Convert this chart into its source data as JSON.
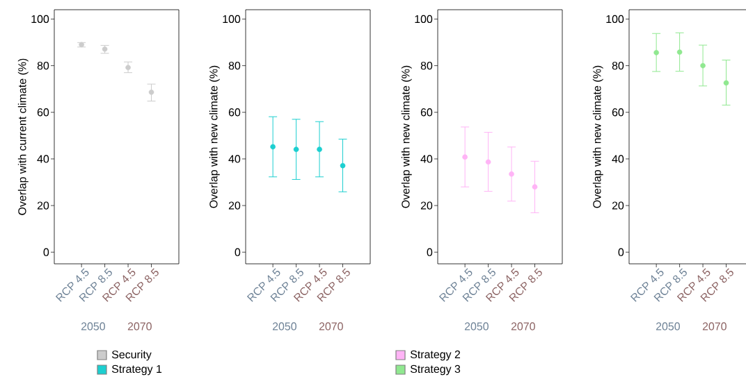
{
  "chart_data": [
    {
      "type": "scatter",
      "categories": [
        "RCP 4.5",
        "RCP 8.5",
        "RCP 4.5",
        "RCP 8.5"
      ],
      "ylabel": "Overlap with current climate (%)",
      "ylim": [
        -5,
        104
      ],
      "yticks": [
        0,
        20,
        40,
        60,
        80,
        100
      ],
      "marker": "circle",
      "legend": "bottom",
      "annotations": [
        "2050",
        "2070"
      ],
      "series": [
        {
          "name": "Security",
          "color": "#cccccc",
          "values": [
            89.0,
            87.1,
            79.2,
            68.6
          ],
          "errors": [
            [
              88.0,
              89.9
            ],
            [
              85.3,
              88.7
            ],
            [
              77.0,
              81.6
            ],
            [
              64.8,
              72.1
            ]
          ]
        }
      ]
    },
    {
      "type": "scatter",
      "categories": [
        "RCP 4.5",
        "RCP 8.5",
        "RCP 4.5",
        "RCP 8.5"
      ],
      "ylabel": "Overlap with new climate (%)",
      "ylim": [
        -5,
        104
      ],
      "yticks": [
        0,
        20,
        40,
        60,
        80,
        100
      ],
      "marker": "circle",
      "legend": "bottom",
      "annotations": [
        "2050",
        "2070"
      ],
      "series": [
        {
          "name": "Strategy 1",
          "color": "#1ccfd0",
          "values": [
            45.2,
            44.1,
            44.1,
            37.1
          ],
          "errors": [
            [
              32.3,
              58.1
            ],
            [
              31.2,
              57.0
            ],
            [
              32.3,
              56.0
            ],
            [
              25.9,
              48.5
            ]
          ]
        }
      ]
    },
    {
      "type": "scatter",
      "categories": [
        "RCP 4.5",
        "RCP 8.5",
        "RCP 4.5",
        "RCP 8.5"
      ],
      "ylabel": "Overlap with new climate (%)",
      "ylim": [
        -5,
        104
      ],
      "yticks": [
        0,
        20,
        40,
        60,
        80,
        100
      ],
      "marker": "circle",
      "legend": "bottom",
      "annotations": [
        "2050",
        "2070"
      ],
      "series": [
        {
          "name": "Strategy 2",
          "color": "#ffb4f6",
          "values": [
            40.8,
            38.7,
            33.5,
            28.0
          ],
          "errors": [
            [
              28.0,
              53.7
            ],
            [
              26.1,
              51.4
            ],
            [
              21.9,
              45.1
            ],
            [
              16.9,
              39.0
            ]
          ]
        }
      ]
    },
    {
      "type": "scatter",
      "categories": [
        "RCP 4.5",
        "RCP 8.5",
        "RCP 4.5",
        "RCP 8.5"
      ],
      "ylabel": "Overlap with new climate (%)",
      "ylim": [
        -5,
        104
      ],
      "yticks": [
        0,
        20,
        40,
        60,
        80,
        100
      ],
      "marker": "circle",
      "legend": "bottom",
      "annotations": [
        "2050",
        "2070"
      ],
      "series": [
        {
          "name": "Strategy 3",
          "color": "#90e890",
          "values": [
            85.6,
            85.8,
            80.0,
            72.6
          ],
          "errors": [
            [
              77.5,
              93.8
            ],
            [
              77.6,
              94.1
            ],
            [
              71.3,
              88.8
            ],
            [
              63.1,
              82.4
            ]
          ]
        }
      ]
    }
  ]
}
